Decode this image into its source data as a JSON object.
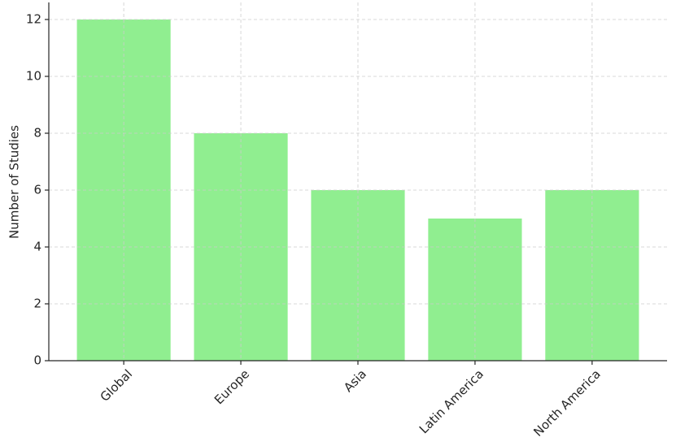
{
  "chart_data": {
    "type": "bar",
    "y_label": "Number of Studies",
    "categories": [
      "Global",
      "Europe",
      "Asia",
      "Latin America",
      "North America"
    ],
    "values": [
      12,
      8,
      6,
      5,
      6
    ],
    "color": "#90ee90",
    "ylim": [
      0,
      12.6
    ],
    "yticks": [
      0,
      2,
      4,
      6,
      8,
      10,
      12
    ],
    "grid": true
  }
}
